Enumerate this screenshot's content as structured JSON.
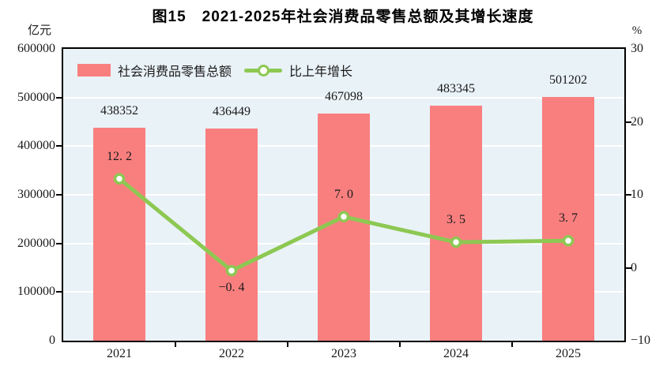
{
  "title": "图15　2021-2025年社会消费品零售总额及其增长速度",
  "left_axis_unit": "亿元",
  "right_axis_unit": "%",
  "colors": {
    "bar": "#F97F7F",
    "line": "#8DC852",
    "marker_fill": "#FFFFFF",
    "plot_bg": "#E9F2F7",
    "grid": "#FFFFFF",
    "axis": "#000000",
    "text": "#1A1A1A",
    "background": "#FFFFFF"
  },
  "chart_data": {
    "type": "combo",
    "title": "图15　2021-2025年社会消费品零售总额及其增长速度",
    "categories": [
      "2021",
      "2022",
      "2023",
      "2024",
      "2025"
    ],
    "series": [
      {
        "name": "社会消费品零售总额",
        "type": "bar",
        "axis": "left",
        "color": "#F97F7F",
        "values": [
          438352,
          436449,
          467098,
          483345,
          501202
        ],
        "value_labels": [
          "438352",
          "436449",
          "467098",
          "483345",
          "501202"
        ]
      },
      {
        "name": "比上年增长",
        "type": "line",
        "axis": "right",
        "color": "#8DC852",
        "marker": "circle-white-fill",
        "values": [
          12.2,
          -0.4,
          7.0,
          3.5,
          3.7
        ],
        "value_labels": [
          "12. 2",
          "−0. 4",
          "7. 0",
          "3. 5",
          "3. 7"
        ]
      }
    ],
    "left_axis": {
      "unit": "亿元",
      "min": 0,
      "max": 600000,
      "tick_step": 100000,
      "tick_labels": [
        "0",
        "100000",
        "200000",
        "300000",
        "400000",
        "500000",
        "600000"
      ]
    },
    "right_axis": {
      "unit": "%",
      "min": -10,
      "max": 30,
      "tick_step": 10,
      "tick_labels": [
        "−10",
        "0",
        "10",
        "20",
        "30"
      ]
    },
    "grid": {
      "horizontal": true,
      "color": "#FFFFFF",
      "at_left_axis_ticks": true
    },
    "legend_position": "top-left-inside"
  }
}
